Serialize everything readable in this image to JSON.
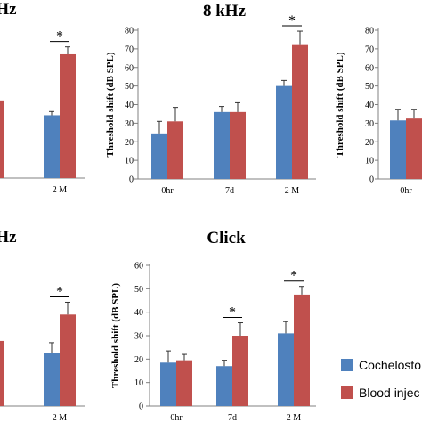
{
  "colors": {
    "series_a": "#4f81bd",
    "series_b": "#c0504d",
    "axis": "#808080",
    "errorbar": "#333333"
  },
  "legend": {
    "series_a": "Cochelosto.",
    "series_b": "Blood injec"
  },
  "chart_data": [
    {
      "type": "bar",
      "title": "Hz",
      "ylabel": "",
      "yticks": [],
      "categories": [
        "d",
        "2 M"
      ],
      "series": [
        {
          "name": "Cochelosto.",
          "values": [
            null,
            34
          ],
          "errors": [
            null,
            2
          ]
        },
        {
          "name": "Blood injec",
          "values": [
            42,
            67
          ],
          "errors": [
            8,
            4
          ]
        }
      ],
      "significance": [
        {
          "category": "2 M",
          "label": "*"
        }
      ],
      "ylim": [
        0,
        80
      ]
    },
    {
      "type": "bar",
      "title": "8 kHz",
      "ylabel": "Threshold shift (dB SPL)",
      "yticks": [
        0,
        10,
        20,
        30,
        40,
        50,
        60,
        70,
        80
      ],
      "categories": [
        "0hr",
        "7d",
        "2 M"
      ],
      "series": [
        {
          "name": "Cochelosto.",
          "values": [
            24.5,
            36,
            50
          ],
          "errors": [
            6.5,
            3,
            3
          ]
        },
        {
          "name": "Blood injec",
          "values": [
            31,
            36,
            72.5
          ],
          "errors": [
            7.5,
            5,
            7
          ]
        }
      ],
      "significance": [
        {
          "category": "2 M",
          "label": "*"
        }
      ],
      "ylim": [
        0,
        80
      ]
    },
    {
      "type": "bar",
      "title": "",
      "ylabel": "Threshold shift (dB SPL)",
      "yticks": [
        0,
        10,
        20,
        30,
        40,
        50,
        60,
        70,
        80
      ],
      "categories": [
        "0hr"
      ],
      "series": [
        {
          "name": "Cochelosto.",
          "values": [
            31.5
          ],
          "errors": [
            6
          ]
        },
        {
          "name": "Blood injec",
          "values": [
            32.5
          ],
          "errors": [
            5
          ]
        }
      ],
      "significance": [],
      "ylim": [
        0,
        80
      ]
    },
    {
      "type": "bar",
      "title": "Hz",
      "ylabel": "",
      "yticks": [],
      "categories": [
        "",
        "2 M"
      ],
      "series": [
        {
          "name": "Cochelosto.",
          "values": [
            null,
            30
          ],
          "errors": [
            null,
            6
          ]
        },
        {
          "name": "Blood injec",
          "values": [
            37,
            52
          ],
          "errors": [
            10,
            7
          ]
        }
      ],
      "significance": [
        {
          "category": "2 M",
          "label": "*"
        }
      ],
      "ylim": [
        0,
        80
      ]
    },
    {
      "type": "bar",
      "title": "Click",
      "ylabel": "Threshold shift (dB SPL)",
      "yticks": [
        0,
        10,
        20,
        30,
        40,
        50,
        60
      ],
      "categories": [
        "0hr",
        "7d",
        "2 M"
      ],
      "series": [
        {
          "name": "Cochelosto.",
          "values": [
            18.5,
            17,
            31
          ],
          "errors": [
            5,
            2.5,
            5
          ]
        },
        {
          "name": "Blood injec",
          "values": [
            19.5,
            30,
            47.5
          ],
          "errors": [
            2.5,
            5.5,
            3.5
          ]
        }
      ],
      "significance": [
        {
          "category": "7d",
          "label": "*"
        },
        {
          "category": "2 M",
          "label": "*"
        }
      ],
      "ylim": [
        0,
        60
      ]
    }
  ]
}
